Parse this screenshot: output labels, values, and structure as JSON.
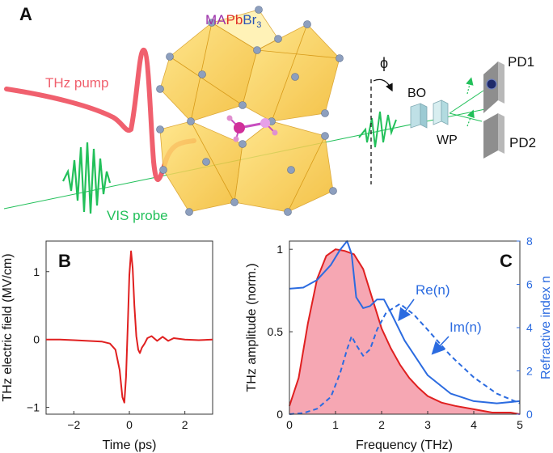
{
  "panel_a": {
    "label": "A",
    "formula": {
      "ma": "MA",
      "pb": "Pb",
      "br": "Br",
      "sub": "3"
    },
    "thz_pump": "THz pump",
    "vis_probe": "VIS probe",
    "phi": "ϕ",
    "bo": "BO",
    "wp": "WP",
    "pd1": "PD1",
    "pd2": "PD2",
    "colors": {
      "pump": "#f0606e",
      "probe": "#22c05a",
      "ma": "#9b2fa8",
      "pb": "#e0302a",
      "br": "#2a55b5"
    }
  },
  "chart_data": [
    {
      "type": "line",
      "panel": "B",
      "xlabel": "Time (ps)",
      "ylabel": "THz electric field (MV/cm)",
      "xlim": [
        -3,
        3
      ],
      "ylim": [
        -1.1,
        1.45
      ],
      "xticks": [
        "−2",
        "0",
        "2"
      ],
      "yticks": [
        "−1",
        "0",
        "1"
      ],
      "series": [
        {
          "color": "#e02020",
          "x": [
            -3,
            -2.5,
            -2,
            -1.5,
            -1,
            -0.7,
            -0.5,
            -0.35,
            -0.25,
            -0.18,
            -0.12,
            -0.05,
            0.0,
            0.06,
            0.12,
            0.18,
            0.25,
            0.32,
            0.38,
            0.45,
            0.55,
            0.65,
            0.8,
            1.0,
            1.2,
            1.4,
            1.6,
            2.0,
            2.5,
            3.0
          ],
          "y": [
            0.0,
            0.0,
            -0.01,
            -0.02,
            -0.03,
            -0.06,
            -0.15,
            -0.45,
            -0.85,
            -0.93,
            -0.55,
            0.3,
            0.95,
            1.3,
            1.05,
            0.5,
            0.05,
            -0.15,
            -0.2,
            -0.12,
            -0.06,
            0.02,
            0.05,
            -0.02,
            0.04,
            -0.02,
            0.02,
            0.0,
            -0.01,
            0.0
          ]
        }
      ]
    },
    {
      "type": "line",
      "panel": "C",
      "xlabel": "Frequency (THz)",
      "ylabel": "THz amplitude (norm.)",
      "ylabel_right": "Refractive index n",
      "xlim": [
        0,
        5
      ],
      "ylim": [
        0,
        1.05
      ],
      "ylim_right": [
        0,
        8
      ],
      "xticks": [
        "0",
        "1",
        "2",
        "3",
        "4",
        "5"
      ],
      "yticks": [
        "0",
        "0.5",
        "1"
      ],
      "yticks_right": [
        "0",
        "2",
        "4",
        "6",
        "8"
      ],
      "annotations": [
        "Re(n)",
        "Im(n)"
      ],
      "series": [
        {
          "axis": "left",
          "fill": "#f6a7b3",
          "color": "#e02020",
          "x": [
            0.0,
            0.2,
            0.4,
            0.6,
            0.8,
            1.0,
            1.2,
            1.4,
            1.6,
            1.8,
            2.0,
            2.2,
            2.4,
            2.6,
            2.8,
            3.0,
            3.3,
            3.6,
            4.0,
            4.4,
            4.8,
            5.0
          ],
          "y": [
            0.05,
            0.22,
            0.55,
            0.82,
            0.96,
            1.0,
            0.99,
            0.97,
            0.88,
            0.7,
            0.52,
            0.4,
            0.3,
            0.22,
            0.16,
            0.11,
            0.07,
            0.05,
            0.03,
            0.01,
            0.01,
            0.0
          ]
        },
        {
          "axis": "right",
          "name": "Re(n)",
          "color": "#2b6be0",
          "x": [
            0.0,
            0.3,
            0.6,
            0.9,
            1.1,
            1.25,
            1.35,
            1.45,
            1.6,
            1.75,
            1.9,
            2.05,
            2.2,
            2.5,
            3.0,
            3.5,
            4.0,
            4.5,
            5.0
          ],
          "y": [
            5.8,
            5.85,
            6.2,
            6.9,
            7.6,
            8.0,
            7.4,
            5.4,
            4.9,
            5.0,
            5.3,
            5.3,
            4.7,
            3.4,
            1.8,
            0.95,
            0.6,
            0.5,
            0.6
          ]
        },
        {
          "axis": "right",
          "name": "Im(n)",
          "dashed": true,
          "color": "#2b6be0",
          "x": [
            0.0,
            0.3,
            0.6,
            0.9,
            1.1,
            1.25,
            1.35,
            1.45,
            1.6,
            1.75,
            1.9,
            2.1,
            2.4,
            2.7,
            3.0,
            3.5,
            4.0,
            4.5,
            5.0
          ],
          "y": [
            0.0,
            0.05,
            0.25,
            0.8,
            1.9,
            3.0,
            3.6,
            3.2,
            2.7,
            3.0,
            3.9,
            4.7,
            5.1,
            4.6,
            3.9,
            2.7,
            1.7,
            0.95,
            0.5
          ]
        }
      ]
    }
  ]
}
